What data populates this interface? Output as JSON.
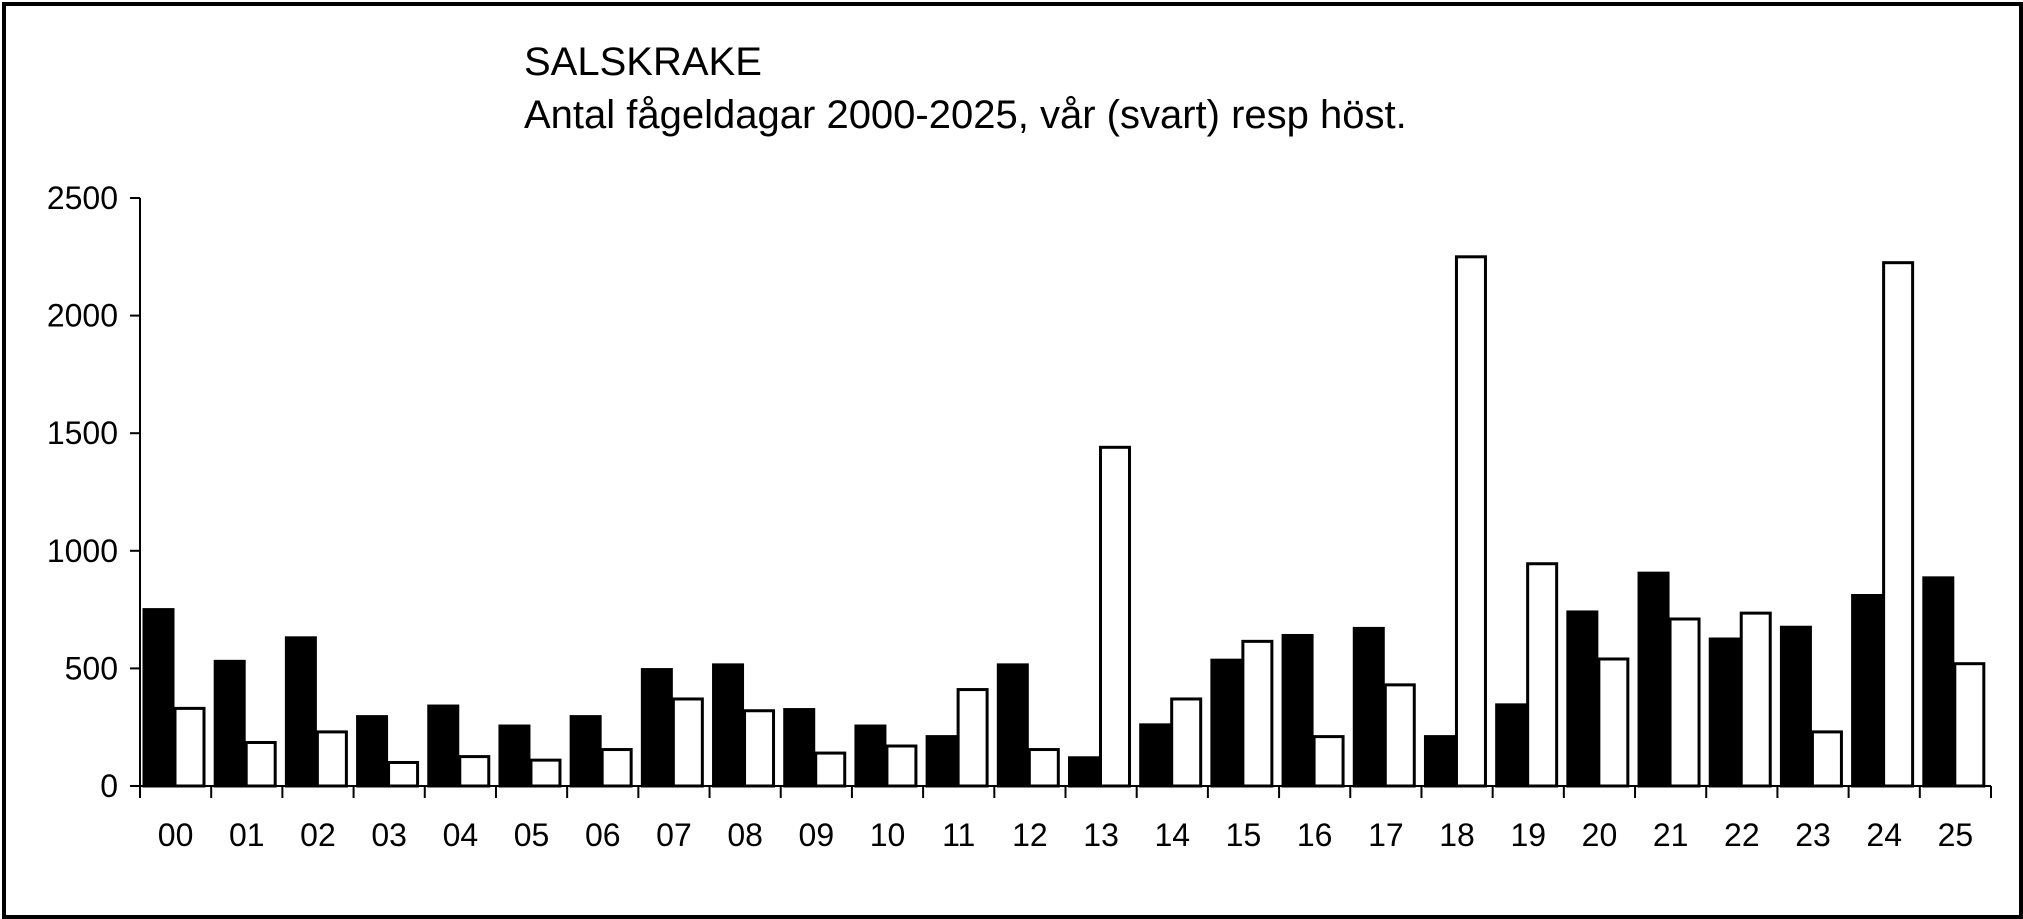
{
  "chart_data": {
    "type": "bar",
    "title": "SALSKRAKE",
    "subtitle": "Antal fågeldagar 2000-2025, vår (svart) resp höst.",
    "xlabel": "",
    "ylabel": "",
    "ylim": [
      0,
      2500
    ],
    "yticks": [
      0,
      500,
      1000,
      1500,
      2000,
      2500
    ],
    "grid": false,
    "legend": "none",
    "categories": [
      "00",
      "01",
      "02",
      "03",
      "04",
      "05",
      "06",
      "07",
      "08",
      "09",
      "10",
      "11",
      "12",
      "13",
      "14",
      "15",
      "16",
      "17",
      "18",
      "19",
      "20",
      "21",
      "22",
      "23",
      "24",
      "25"
    ],
    "series": [
      {
        "color": "#000000",
        "values": [
          750,
          530,
          630,
          295,
          340,
          255,
          295,
          495,
          515,
          325,
          255,
          210,
          515,
          120,
          260,
          535,
          640,
          670,
          210,
          345,
          740,
          905,
          625,
          675,
          810,
          885
        ]
      },
      {
        "color": "#ffffff",
        "values": [
          330,
          185,
          230,
          100,
          125,
          110,
          155,
          370,
          320,
          140,
          170,
          410,
          155,
          1440,
          370,
          615,
          210,
          430,
          2250,
          945,
          540,
          710,
          735,
          230,
          2225,
          520
        ]
      }
    ]
  }
}
